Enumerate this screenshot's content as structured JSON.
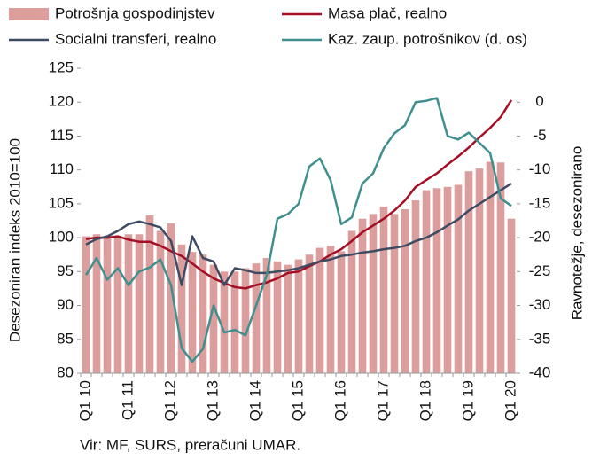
{
  "chart_data": {
    "type": "bar-line",
    "source": "Vir: MF, SURS, preračuni UMAR.",
    "ylabel": "Desezoniran indeks 2010=100",
    "y2label": "Ravnotežje, desezonirano",
    "categories": [
      "Q1 10",
      null,
      null,
      null,
      "Q1 11",
      null,
      null,
      null,
      "Q1 12",
      null,
      null,
      null,
      "Q1 13",
      null,
      null,
      null,
      "Q1 14",
      null,
      null,
      null,
      "Q1 15",
      null,
      null,
      null,
      "Q1 16",
      null,
      null,
      null,
      "Q1 17",
      null,
      null,
      null,
      "Q1 18",
      null,
      null,
      null,
      "Q1 19",
      null,
      null,
      null,
      "Q1 20"
    ],
    "ylim": [
      80,
      125
    ],
    "yticks": [
      80,
      85,
      90,
      95,
      100,
      105,
      110,
      115,
      120,
      125
    ],
    "y2lim": [
      -40,
      5
    ],
    "y2ticks": [
      -40,
      -35,
      -30,
      -25,
      -20,
      -15,
      -10,
      -5,
      0
    ],
    "series": [
      {
        "name": "Potrošnja gospodinjstev",
        "kind": "bar",
        "color": "#dc9d9d",
        "values": [
          100.2,
          100.5,
          100.0,
          100.2,
          100.5,
          100.5,
          103.3,
          101.0,
          102.1,
          99.0,
          97.9,
          97.5,
          96.0,
          95.0,
          95.0,
          95.5,
          96.2,
          97.0,
          96.5,
          96.0,
          96.8,
          97.5,
          98.5,
          98.8,
          98.0,
          101.0,
          102.8,
          103.5,
          104.6,
          103.5,
          104.2,
          105.5,
          107.0,
          107.3,
          107.5,
          107.8,
          109.8,
          110.2,
          111.2,
          111.1,
          102.8
        ]
      },
      {
        "name": "Masa plač, realno",
        "kind": "line",
        "color": "#a50f25",
        "values": [
          99.8,
          100.0,
          100.0,
          100.2,
          99.7,
          99.4,
          99.4,
          98.8,
          98.0,
          97.3,
          96.2,
          95.0,
          94.0,
          93.3,
          92.7,
          92.5,
          93.0,
          93.4,
          94.0,
          94.8,
          95.0,
          95.8,
          96.5,
          97.5,
          98.3,
          99.5,
          100.8,
          101.8,
          102.8,
          104.0,
          105.5,
          107.5,
          108.5,
          109.5,
          110.8,
          112.0,
          113.3,
          114.8,
          116.2,
          117.8,
          120.3
        ]
      },
      {
        "name": "Socialni transferi, realno",
        "kind": "line",
        "color": "#3d4b63",
        "values": [
          99.0,
          99.8,
          100.2,
          101.0,
          102.0,
          102.4,
          102.0,
          101.5,
          99.5,
          93.0,
          100.2,
          97.0,
          96.5,
          93.0,
          95.5,
          95.2,
          94.8,
          94.8,
          95.0,
          95.2,
          95.5,
          96.0,
          96.5,
          96.8,
          97.3,
          97.5,
          97.8,
          98.0,
          98.3,
          98.5,
          98.8,
          99.5,
          100.0,
          100.8,
          101.8,
          102.7,
          104.0,
          105.0,
          106.0,
          107.0,
          108.0
        ]
      },
      {
        "name": "Kaz. zaup. potrošnikov (d. os)",
        "kind": "line",
        "axis": "y2",
        "color": "#3f8f8f",
        "values": [
          -25.5,
          -23.0,
          -26.2,
          -24.5,
          -27.0,
          -25.0,
          -24.4,
          -23.2,
          -27.0,
          -36.3,
          -38.3,
          -36.4,
          -30.0,
          -34.0,
          -33.6,
          -34.4,
          -30.0,
          -25.5,
          -17.2,
          -16.5,
          -15.0,
          -9.5,
          -8.3,
          -11.5,
          -18.0,
          -17.0,
          -12.0,
          -10.5,
          -6.8,
          -4.6,
          -3.4,
          0.0,
          0.2,
          0.6,
          -5.0,
          -5.5,
          -4.5,
          -6.0,
          -7.5,
          -14.2,
          -15.3
        ]
      }
    ]
  }
}
